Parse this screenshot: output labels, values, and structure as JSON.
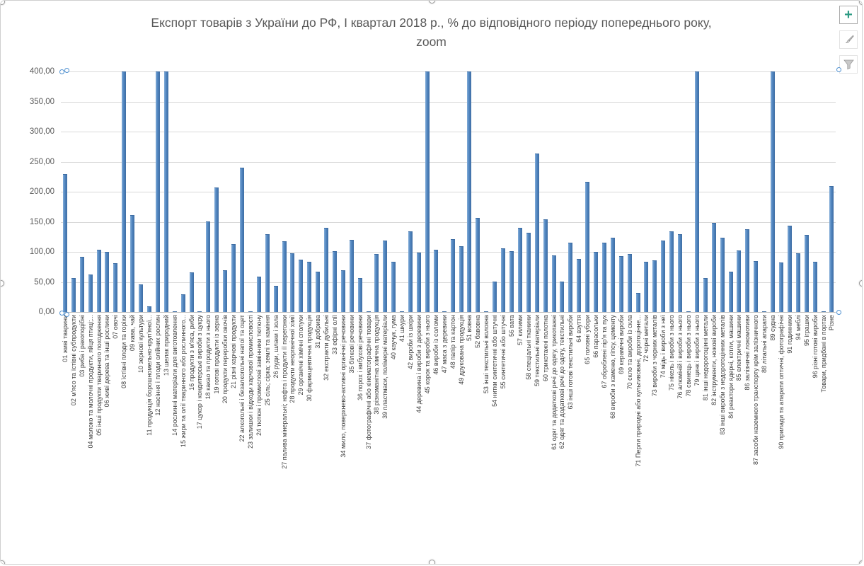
{
  "window": {
    "app": "spreadsheet-embedded-chart"
  },
  "title": {
    "line1": "Експорт товарів з України до РФ, І квартал 2018 р., % до відповідного періоду попереднього року,",
    "line2": "zoom"
  },
  "side_buttons": {
    "chart_elements": {
      "icon": "plus-icon",
      "color": "#2e9b84"
    },
    "chart_styles": {
      "icon": "brush-icon",
      "color": "#8f8f8f"
    },
    "chart_filters": {
      "icon": "funnel-icon",
      "color": "#a8a8a8"
    }
  },
  "colors": {
    "bar_fill": "#5186c0",
    "bar_edge": "#3e6da3",
    "gridline": "#d9d9d9",
    "axis_line": "#bfbfbf",
    "title_text": "#595959",
    "tick_text": "#595959",
    "category_text": "#3f3f3f",
    "selection_handle_ring": "#4f90d0"
  },
  "chart_data": {
    "type": "bar",
    "title": "Експорт товарів з України до РФ, І квартал 2018 р., % до відповідного періоду попереднього року, zoom",
    "xlabel": "",
    "ylabel": "",
    "ylim": [
      0,
      400
    ],
    "grid": true,
    "legend": false,
    "y_ticks": [
      "400,00",
      "350,00",
      "300,00",
      "250,00",
      "200,00",
      "150,00",
      "100,00",
      "50,00",
      "0,00"
    ],
    "note": "values of 400 are clipped at the axis maximum",
    "categories": [
      "01 живі тварини",
      "02 м'ясо та їстівні субпродукти",
      "03 риба і ракоподібні",
      "04 молоко та молочні продукти, яйця птиці;...",
      "05 інші продукти тваринного походження",
      "06 живі дерева та інші рослини",
      "07 овочі",
      "08 їстівні плоди та горіхи",
      "09 кава, чай",
      "10 зернові культури",
      "11 продукція борошномельно-круп'яної...",
      "12 насіння і плоди олійних рослин",
      "13 шелак природний",
      "14 рослинні матеріали для виготовлення",
      "15 жири та олії тваринного або рослинного...",
      "16 продукти з м'яса, риби",
      "17 цукор і кондитерські вироби з цукру",
      "18 какао та продукти з нього",
      "19 готові продукти із зерна",
      "20 продукти переробки овочів",
      "21 різні харчові продукти",
      "22 алкогольні і безалкогольні напої та оцет",
      "23 залишки і відходи харчової промисловості",
      "24 тютюн і промислові замінники тютюну",
      "25 сіль; сірка; землі та каміння",
      "26 руди, шлаки і зола",
      "27 палива мінеральні; нафта і продукти її перегонки",
      "28 продукти неорганічної хімії",
      "29 органічні хімічні сполуки",
      "30 фармацевтична продукція",
      "31 добрива",
      "32 екстракти дубильні",
      "33 ефірні олії",
      "34 мило, поверхнево-активні органічні речовини",
      "35 білкові речовини",
      "36 порох і вибухові речовини",
      "37 фотографічні або кінематографічні товари",
      "38 різноманітна хімічна продукція",
      "39 пластмаси, полімерні матеріали",
      "40 каучук, гума",
      "41 шкури",
      "42 вироби із шкіри",
      "44 деревина і вироби з деревини",
      "45 корок та вироби з нього",
      "46 вироби із соломи",
      "47 маса з деревини",
      "48 папір та картон",
      "49 друкована продукція",
      "51 вовна",
      "52 бавовна",
      "53 інші текстильні волокна",
      "54 нитки синтетичні або штучні",
      "55 синтетичні або штучні",
      "56 вата",
      "57 килими",
      "58 спеціальні тканини",
      "59 текстильні матеріали",
      "60 трикотажні полотна",
      "61 одяг та додаткові речі до одягу, трикотажні",
      "62 одяг та додаткові речі до одягу, текстильні",
      "63 інші готові текстильні вироби",
      "64 взуття",
      "65 головні убори",
      "66 парасольки",
      "67 оброблені пір'я та пух",
      "68 вироби з каменю, гіпсу, цементу",
      "69 керамічні вироби",
      "70 скло та вироби із скла",
      "71 Перли природні або культивовані, дорогоцінне...",
      "72 чорні метали",
      "73 вироби з чорних металів",
      "74 мідь і вироби з неї",
      "75 нікель і вироби з нього",
      "76 алюміній і вироби з нього",
      "78 свинець і вироби з нього",
      "79 цинк і вироби з нього",
      "81 інші недорогоцінні метали",
      "82 інструменти, ножові вироби",
      "83 інші вироби з недорогоцінних металів",
      "84 реактори ядерні, котли, машини",
      "85 електричні машини",
      "86 залізничні локомотиви",
      "87 засоби наземного транспорту крім залізничного",
      "88 літальні апарати",
      "89 судна",
      "90 прилади та апарати оптичні, фотографічні",
      "91 годинники",
      "94 меблі",
      "95 іграшки",
      "96 різні готові вироби",
      "Товари, придбані в портах",
      "Різне"
    ],
    "values": [
      230,
      57,
      92,
      62,
      104,
      100,
      81,
      400,
      161,
      46,
      10,
      400,
      400,
      1,
      30,
      66,
      1,
      151,
      207,
      70,
      113,
      240,
      1,
      59,
      130,
      43,
      118,
      98,
      87,
      84,
      67,
      140,
      101,
      69,
      120,
      56,
      1,
      96,
      119,
      84,
      1,
      134,
      99,
      400,
      104,
      1,
      121,
      109,
      400,
      156,
      1,
      51,
      106,
      101,
      140,
      132,
      263,
      154,
      94,
      51,
      115,
      88,
      217,
      100,
      115,
      123,
      93,
      96,
      32,
      83,
      86,
      119,
      134,
      130,
      1,
      400,
      57,
      148,
      123,
      67,
      102,
      138,
      85,
      1,
      400,
      82,
      144,
      98,
      128,
      84,
      1,
      210
    ]
  }
}
